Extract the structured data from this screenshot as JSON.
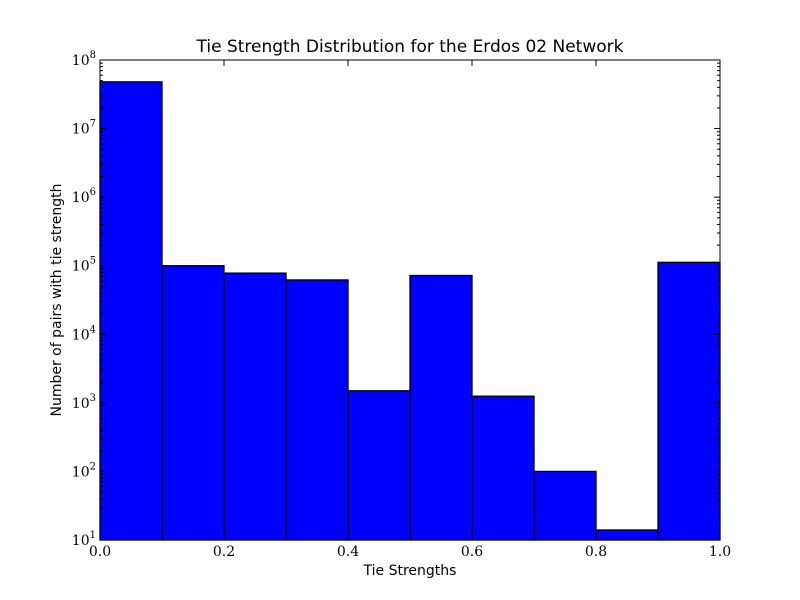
{
  "chart_data": {
    "type": "bar",
    "title": "Tie Strength Distribution for the Erdos 02 Network",
    "xlabel": "Tie Strengths",
    "ylabel": "Number of pairs with tie strength",
    "yscale": "log",
    "xlim": [
      0.0,
      1.0
    ],
    "ylim": [
      10,
      100000000
    ],
    "grid": false,
    "bar_color": "#0000ff",
    "edge_color": "#000000",
    "bin_edges": [
      0.0,
      0.1,
      0.2,
      0.3,
      0.4,
      0.5,
      0.6,
      0.7,
      0.8,
      0.9,
      1.0
    ],
    "values": [
      48000000,
      100000,
      78000,
      62000,
      1500,
      72000,
      1250,
      100,
      14,
      112000
    ],
    "x_ticks": [
      {
        "value": 0.0,
        "label": "0.0"
      },
      {
        "value": 0.2,
        "label": "0.2"
      },
      {
        "value": 0.4,
        "label": "0.4"
      },
      {
        "value": 0.6,
        "label": "0.6"
      },
      {
        "value": 0.8,
        "label": "0.8"
      },
      {
        "value": 1.0,
        "label": "1.0"
      }
    ],
    "y_ticks": [
      {
        "value": 10,
        "base": "10",
        "exp": "1"
      },
      {
        "value": 100,
        "base": "10",
        "exp": "2"
      },
      {
        "value": 1000,
        "base": "10",
        "exp": "3"
      },
      {
        "value": 10000,
        "base": "10",
        "exp": "4"
      },
      {
        "value": 100000,
        "base": "10",
        "exp": "5"
      },
      {
        "value": 1000000,
        "base": "10",
        "exp": "6"
      },
      {
        "value": 10000000,
        "base": "10",
        "exp": "7"
      },
      {
        "value": 100000000,
        "base": "10",
        "exp": "8"
      }
    ]
  }
}
